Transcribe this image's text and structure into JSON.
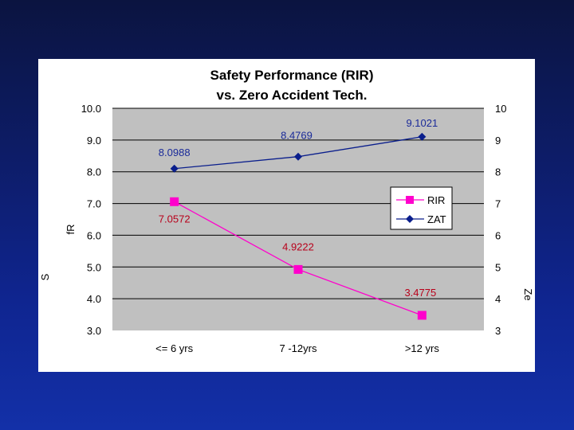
{
  "chart_data": {
    "type": "line",
    "title": "Safety Performance (RIR)",
    "subtitle": "vs. Zero Accident Tech.",
    "categories": [
      "<= 6 yrs",
      "7 -12yrs",
      ">12 yrs"
    ],
    "ylim": [
      3,
      10
    ],
    "y_ticks_left": [
      "10.0",
      "9.0",
      "8.0",
      "7.0",
      "6.0",
      "5.0",
      "4.0",
      "3.0"
    ],
    "y_ticks_right": [
      "10",
      "9",
      "8",
      "7",
      "6",
      "5",
      "4",
      "3"
    ],
    "ylabel_left": "fR",
    "ylabel_left_lower": "S",
    "ylabel_right": "Ze",
    "grid": true,
    "legend_position": "right",
    "series": [
      {
        "name": "RIR",
        "values": [
          7.0572,
          4.9222,
          3.4775
        ],
        "labels": [
          "7.0572",
          "4.9222",
          "3.4775"
        ],
        "color": "#ff00cc",
        "label_color": "#b8001a",
        "marker": "square"
      },
      {
        "name": "ZAT",
        "values": [
          8.0988,
          8.4769,
          9.1021
        ],
        "labels": [
          "8.0988",
          "8.4769",
          "9.1021"
        ],
        "color": "#0a1e8c",
        "label_color": "#1a2a99",
        "marker": "diamond"
      }
    ]
  }
}
